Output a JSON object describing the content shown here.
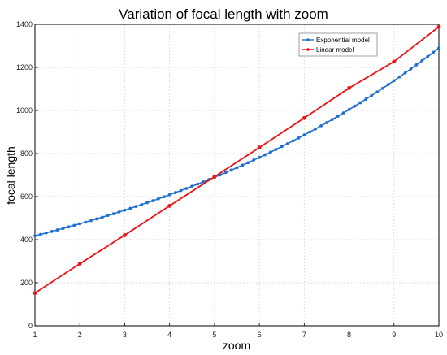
{
  "chart_data": {
    "type": "line",
    "title": "Variation of focal length with zoom",
    "xlabel": "zoom",
    "ylabel": "focal length",
    "xlim": [
      1,
      10
    ],
    "ylim": [
      0,
      1400
    ],
    "x_ticks": [
      "1",
      "2",
      "3",
      "4",
      "5",
      "6",
      "7",
      "8",
      "9",
      "10"
    ],
    "y_ticks": [
      "0",
      "200",
      "400",
      "600",
      "800",
      "1000",
      "1200",
      "1400"
    ],
    "grid": true,
    "legend_position": "top-right",
    "series": [
      {
        "name": "Exponential  model",
        "color": "#1f6fd1",
        "marker": "dot",
        "model": "exponential",
        "x_start": 1,
        "x_end": 10,
        "samples": 73,
        "y_start": 418,
        "y_end": 1290
      },
      {
        "name": "Linear model",
        "color": "#ee1111",
        "marker": "dot",
        "x": [
          1,
          2,
          3,
          4,
          5,
          6,
          7,
          8,
          9,
          10
        ],
        "y": [
          152,
          288,
          421,
          557,
          692,
          828,
          965,
          1104,
          1227,
          1388
        ]
      }
    ]
  }
}
